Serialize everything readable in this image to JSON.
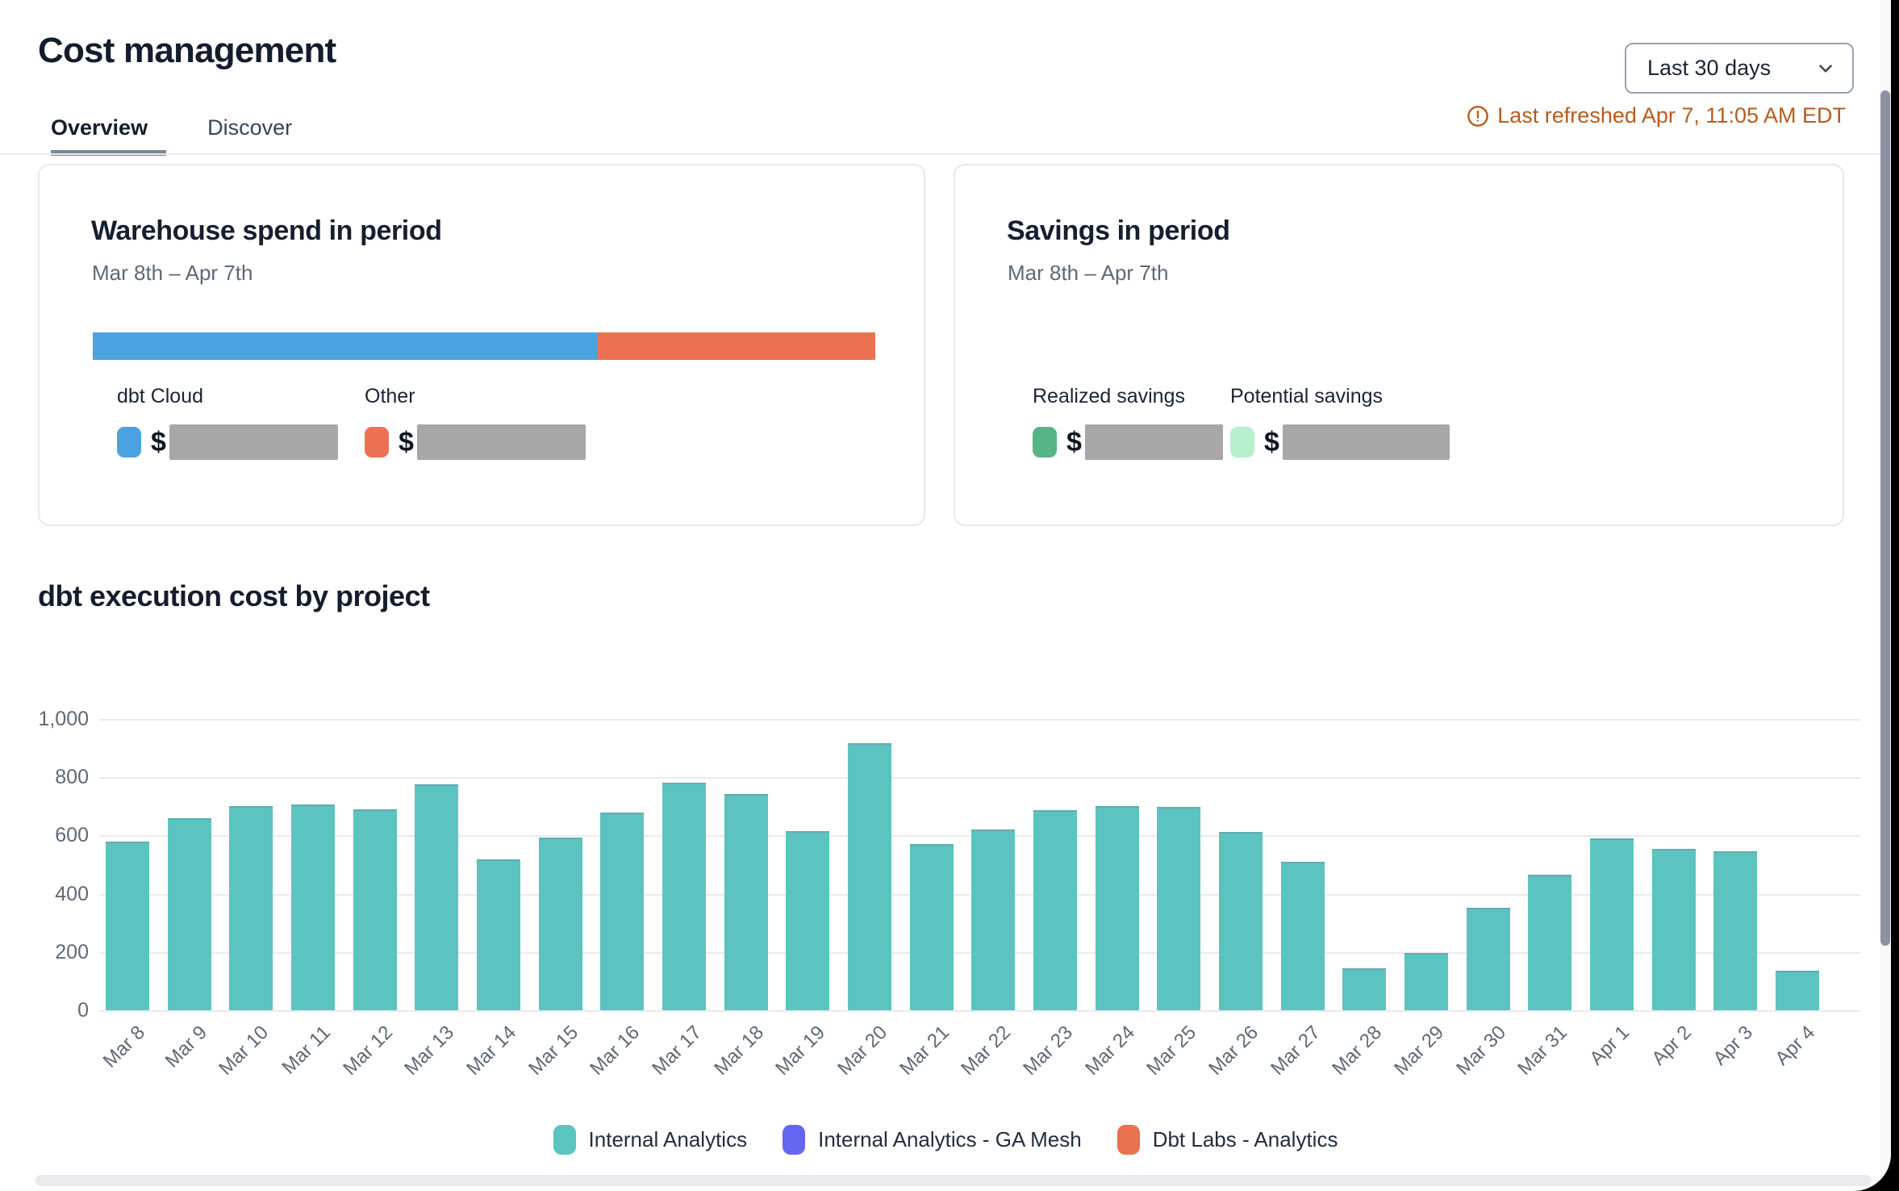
{
  "header": {
    "title": "Cost management",
    "tabs": [
      {
        "label": "Overview",
        "active": true
      },
      {
        "label": "Discover",
        "active": false
      }
    ],
    "range_selector": {
      "value": "Last 30 days"
    },
    "refresh_notice": "Last refreshed Apr 7, 11:05 AM EDT",
    "refresh_color": "#B85A1E"
  },
  "cards": {
    "warehouse": {
      "title": "Warehouse spend in period",
      "period": "Mar 8th – Apr 7th",
      "segments": [
        {
          "label": "dbt Cloud",
          "color": "#4BA2E0",
          "fraction": 0.645,
          "amount_prefix": "$",
          "amount_hidden": true,
          "redact_width": 209
        },
        {
          "label": "Other",
          "color": "#EC7152",
          "fraction": 0.355,
          "amount_prefix": "$",
          "amount_hidden": true,
          "redact_width": 209
        }
      ]
    },
    "savings": {
      "title": "Savings in period",
      "period": "Mar 8th – Apr 7th",
      "items": [
        {
          "label": "Realized savings",
          "color": "#55B586",
          "amount_prefix": "$",
          "amount_hidden": true,
          "redact_width": 171
        },
        {
          "label": "Potential savings",
          "color": "#B7F0CD",
          "amount_prefix": "$",
          "amount_hidden": true,
          "redact_width": 207
        }
      ]
    }
  },
  "chart_data": {
    "type": "bar",
    "title": "dbt execution cost by project",
    "categories": [
      "Mar 8",
      "Mar 9",
      "Mar 10",
      "Mar 11",
      "Mar 12",
      "Mar 13",
      "Mar 14",
      "Mar 15",
      "Mar 16",
      "Mar 17",
      "Mar 18",
      "Mar 19",
      "Mar 20",
      "Mar 21",
      "Mar 22",
      "Mar 23",
      "Mar 24",
      "Mar 25",
      "Mar 26",
      "Mar 27",
      "Mar 28",
      "Mar 29",
      "Mar 30",
      "Mar 31",
      "Apr 1",
      "Apr 2",
      "Apr 3",
      "Apr 4"
    ],
    "series": [
      {
        "name": "Internal Analytics",
        "color": "#5BC4C0",
        "values": [
          580,
          660,
          700,
          705,
          690,
          775,
          518,
          593,
          680,
          780,
          742,
          615,
          918,
          570,
          620,
          687,
          700,
          698,
          612,
          510,
          145,
          196,
          352,
          465,
          590,
          554,
          545,
          135
        ]
      },
      {
        "name": "Internal Analytics - GA Mesh",
        "color": "#6366F1",
        "values": [
          0,
          0,
          0,
          0,
          0,
          0,
          0,
          0,
          0,
          0,
          0,
          0,
          0,
          0,
          0,
          0,
          0,
          0,
          0,
          0,
          0,
          0,
          0,
          0,
          0,
          0,
          0,
          0
        ]
      },
      {
        "name": "Dbt Labs - Analytics",
        "color": "#E8714E",
        "values": [
          0,
          0,
          0,
          0,
          0,
          0,
          0,
          0,
          0,
          0,
          0,
          0,
          0,
          0,
          0,
          0,
          0,
          0,
          0,
          0,
          0,
          0,
          0,
          0,
          0,
          0,
          0,
          0
        ]
      }
    ],
    "xlabel": "",
    "ylabel": "",
    "ylim": [
      0,
      1000
    ],
    "yticks": [
      "0",
      "200",
      "400",
      "600",
      "800",
      "1,000"
    ],
    "grid": true,
    "legend_position": "bottom"
  }
}
